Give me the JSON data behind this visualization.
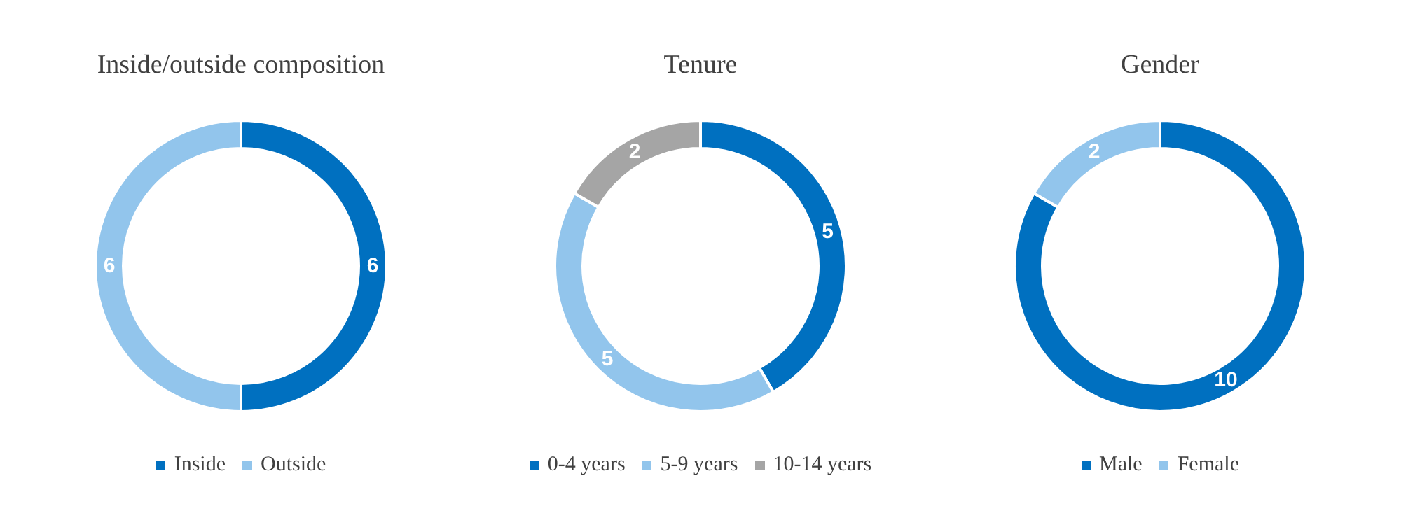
{
  "chart_data": [
    {
      "type": "donut",
      "title": "Inside/outside composition",
      "categories": [
        "Inside",
        "Outside"
      ],
      "values": [
        6,
        6
      ],
      "colors": [
        "#0070c0",
        "#92c5ec"
      ],
      "data_labels": true,
      "legend": "bottom"
    },
    {
      "type": "donut",
      "title": "Tenure",
      "categories": [
        "0-4 years",
        "5-9 years",
        "10-14 years"
      ],
      "values": [
        5,
        5,
        2
      ],
      "colors": [
        "#0070c0",
        "#92c5ec",
        "#a5a5a5"
      ],
      "data_labels": true,
      "legend": "bottom"
    },
    {
      "type": "donut",
      "title": "Gender",
      "categories": [
        "Male",
        "Female"
      ],
      "values": [
        10,
        2
      ],
      "colors": [
        "#0070c0",
        "#92c5ec"
      ],
      "data_labels": true,
      "legend": "bottom"
    }
  ]
}
